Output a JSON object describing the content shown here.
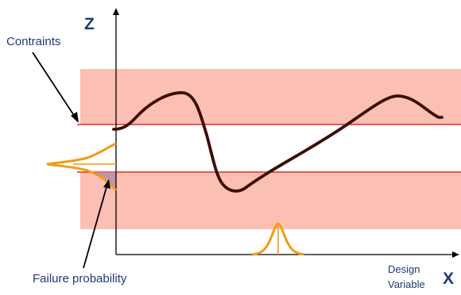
{
  "labels": {
    "z_axis": "Z",
    "x_axis": "X",
    "constraints": "Contraints",
    "failure_probability": "Failure probability",
    "design_variable_line1": "Design",
    "design_variable_line2": "Variable"
  },
  "colors": {
    "band_fill": "#fbbfb3",
    "constraint_line": "#e8281e",
    "curve": "#3b0d06",
    "distribution": "#f29b12",
    "text": "#1f3a78",
    "axis": "#000000"
  }
}
